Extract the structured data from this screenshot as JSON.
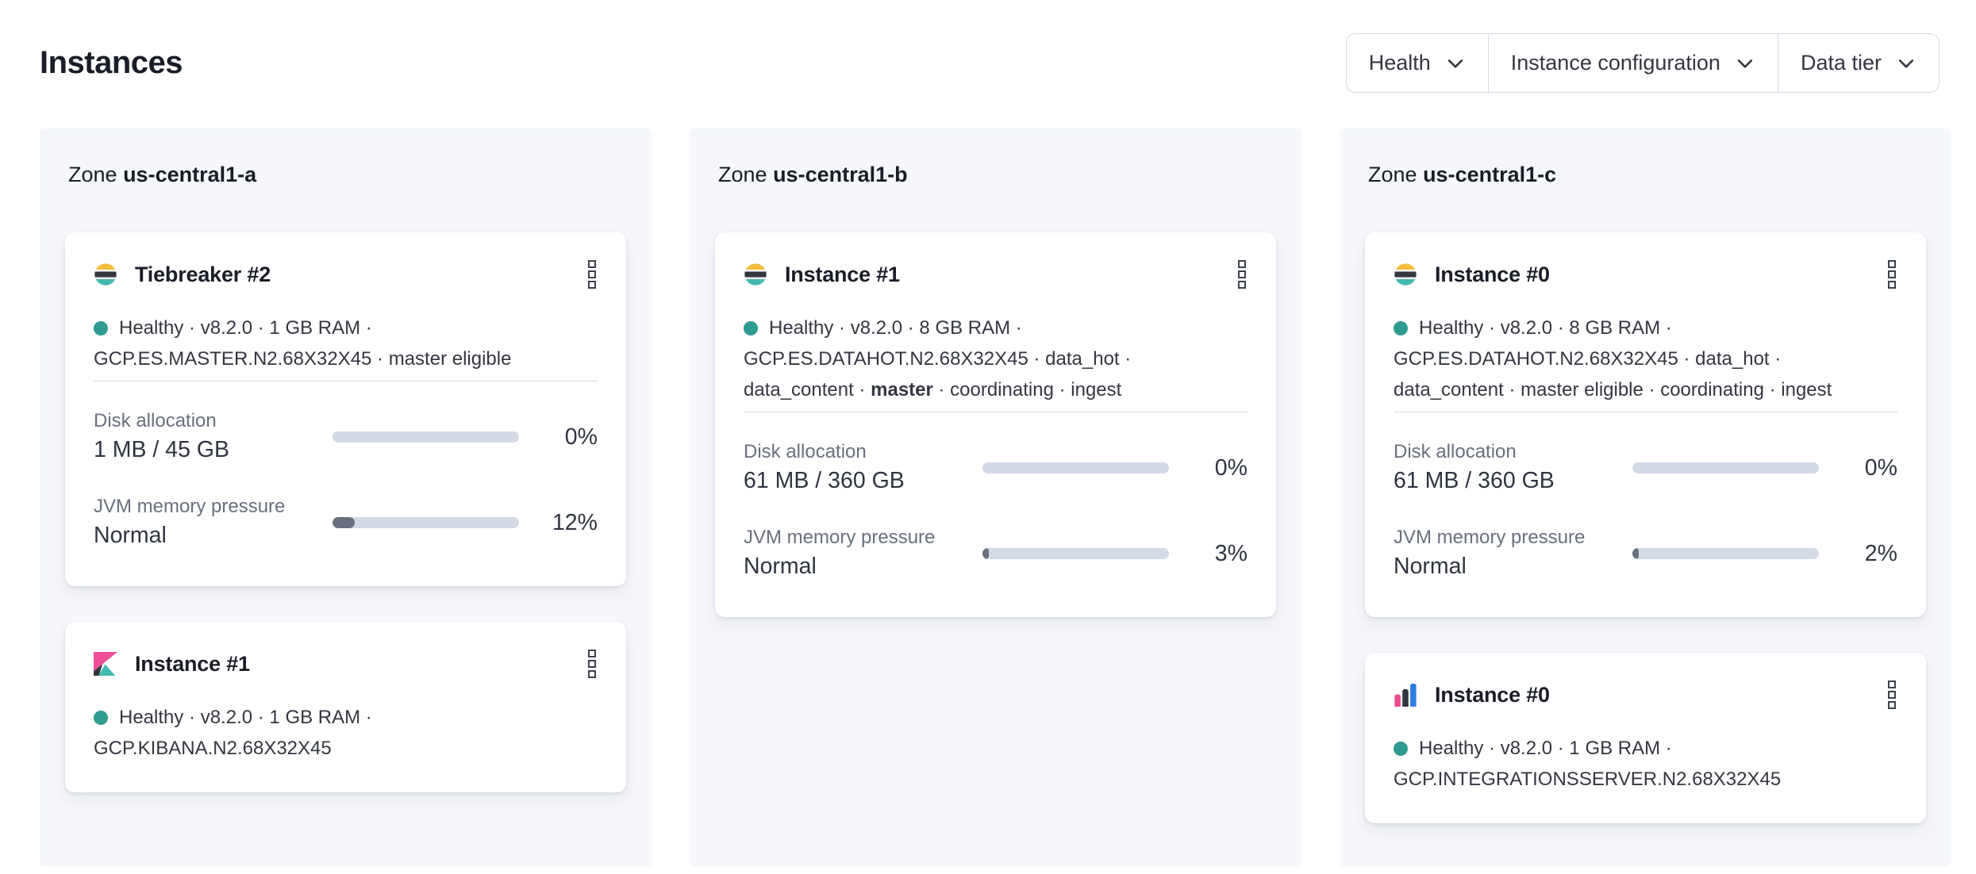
{
  "page": {
    "title": "Instances"
  },
  "filter_bar": {
    "buttons": [
      {
        "label": "Health"
      },
      {
        "label": "Instance configuration"
      },
      {
        "label": "Data tier"
      }
    ]
  },
  "colors": {
    "health_teal": "#309b90",
    "bar_track": "#d3dae6",
    "bar_fill": "#69707d",
    "zone_background": "#f5f7fb",
    "es_logo_yellow": "#f5bd3f",
    "es_logo_dark": "#343741",
    "es_logo_teal": "#42b9b1",
    "kibana_pink": "#f04e98",
    "agent_blue": "#2f7de2"
  },
  "zones": [
    {
      "label_prefix": "Zone",
      "name": "us-central1-a",
      "cards": [
        {
          "logo": "elasticsearch-logo",
          "title": "Tiebreaker #2",
          "meta": [
            {
              "text": "Healthy"
            },
            {
              "text": "v8.2.0"
            },
            {
              "text": "1 GB RAM"
            },
            {
              "text": "GCP.ES.MASTER.N2.68X32X45"
            },
            {
              "text": "master eligible"
            }
          ],
          "metrics": [
            {
              "label": "Disk allocation",
              "value": "1 MB / 45 GB",
              "percent": 0,
              "percent_label": "0%"
            },
            {
              "label": "JVM memory pressure",
              "value": "Normal",
              "percent": 12,
              "percent_label": "12%"
            }
          ]
        },
        {
          "logo": "kibana-logo",
          "title": "Instance #1",
          "meta": [
            {
              "text": "Healthy"
            },
            {
              "text": "v8.2.0"
            },
            {
              "text": "1 GB RAM"
            },
            {
              "text": "GCP.KIBANA.N2.68X32X45"
            }
          ],
          "metrics": []
        }
      ]
    },
    {
      "label_prefix": "Zone",
      "name": "us-central1-b",
      "cards": [
        {
          "logo": "elasticsearch-logo",
          "title": "Instance #1",
          "meta": [
            {
              "text": "Healthy"
            },
            {
              "text": "v8.2.0"
            },
            {
              "text": "8 GB RAM"
            },
            {
              "text": "GCP.ES.DATAHOT.N2.68X32X45"
            },
            {
              "text": "data_hot"
            },
            {
              "text": "data_content"
            },
            {
              "text": "master",
              "bold": true
            },
            {
              "text": "coordinating"
            },
            {
              "text": "ingest"
            }
          ],
          "metrics": [
            {
              "label": "Disk allocation",
              "value": "61 MB / 360 GB",
              "percent": 0,
              "percent_label": "0%"
            },
            {
              "label": "JVM memory pressure",
              "value": "Normal",
              "percent": 3,
              "percent_label": "3%"
            }
          ]
        }
      ]
    },
    {
      "label_prefix": "Zone",
      "name": "us-central1-c",
      "cards": [
        {
          "logo": "elasticsearch-logo",
          "title": "Instance #0",
          "meta": [
            {
              "text": "Healthy"
            },
            {
              "text": "v8.2.0"
            },
            {
              "text": "8 GB RAM"
            },
            {
              "text": "GCP.ES.DATAHOT.N2.68X32X45"
            },
            {
              "text": "data_hot"
            },
            {
              "text": "data_content"
            },
            {
              "text": "master eligible"
            },
            {
              "text": "coordinating"
            },
            {
              "text": "ingest"
            }
          ],
          "metrics": [
            {
              "label": "Disk allocation",
              "value": "61 MB / 360 GB",
              "percent": 0,
              "percent_label": "0%"
            },
            {
              "label": "JVM memory pressure",
              "value": "Normal",
              "percent": 2,
              "percent_label": "2%"
            }
          ]
        },
        {
          "logo": "integrations-server-logo",
          "title": "Instance #0",
          "meta": [
            {
              "text": "Healthy"
            },
            {
              "text": "v8.2.0"
            },
            {
              "text": "1 GB RAM"
            },
            {
              "text": "GCP.INTEGRATIONSSERVER.N2.68X32X45"
            }
          ],
          "metrics": []
        }
      ]
    }
  ]
}
